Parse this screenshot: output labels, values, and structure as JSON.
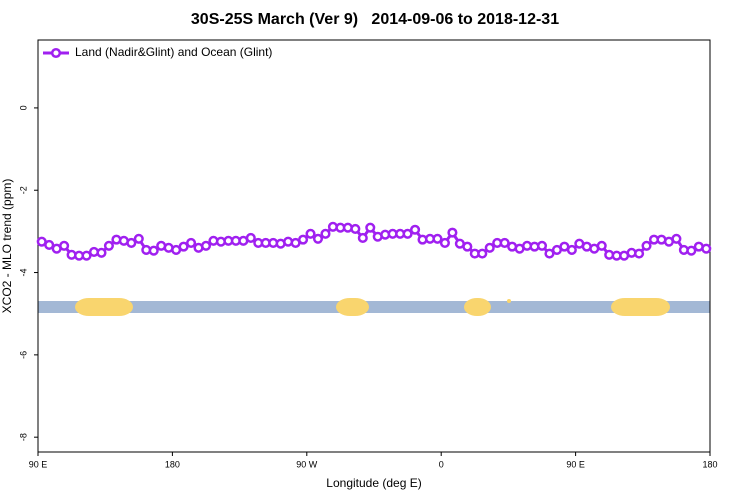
{
  "chart_data": {
    "type": "line",
    "title": "30S-25S March (Ver 9)   2014-09-06 to 2018-12-31",
    "x_label": "Longitude (deg E)",
    "y_label": "XCO2 - MLO trend (ppm)",
    "xlim": [
      90,
      540
    ],
    "ylim": [
      -8.36,
      1.65
    ],
    "xticks": [
      {
        "value": 90,
        "label": "90 E"
      },
      180,
      {
        "value": 270,
        "label": "90 W"
      },
      {
        "value": 360,
        "label": "0"
      },
      {
        "value": 450,
        "label": "90 E"
      },
      {
        "value": 540,
        "label": "180"
      }
    ],
    "yticks": [
      0,
      -2,
      -4,
      -6,
      -8
    ],
    "grid": false,
    "legend": "top-left",
    "x": [
      92.5,
      97.5,
      102.5,
      107.5,
      112.5,
      117.5,
      122.5,
      127.5,
      132.5,
      137.5,
      142.5,
      147.5,
      152.5,
      157.5,
      162.5,
      167.5,
      172.5,
      177.5,
      182.5,
      187.5,
      192.5,
      197.5,
      202.5,
      207.5,
      212.5,
      217.5,
      222.5,
      227.5,
      232.5,
      237.5,
      242.5,
      247.5,
      252.5,
      257.5,
      262.5,
      267.5,
      272.5,
      277.5,
      282.5,
      287.5,
      292.5,
      297.5,
      302.5,
      307.5,
      312.5,
      317.5,
      322.5,
      327.5,
      332.5,
      337.5,
      342.5,
      347.5,
      352.5,
      357.5,
      362.5,
      367.5,
      372.5,
      377.5,
      382.5,
      387.5,
      392.5,
      397.5,
      402.5,
      407.5,
      412.5,
      417.5,
      422.5,
      427.5,
      432.5,
      437.5,
      442.5,
      447.5,
      452.5,
      457.5,
      462.5,
      467.5,
      472.5,
      477.5,
      482.5,
      487.5,
      492.5,
      497.5,
      502.5,
      507.5,
      512.5,
      517.5,
      522.5,
      527.5,
      532.5,
      537.5
    ],
    "series": [
      {
        "name": "Land (Nadir&Glint) and Ocean (Glint)",
        "color": "#a020f0",
        "values": [
          -3.25,
          -3.33,
          -3.42,
          -3.35,
          -3.57,
          -3.59,
          -3.59,
          -3.5,
          -3.52,
          -3.35,
          -3.2,
          -3.23,
          -3.28,
          -3.18,
          -3.45,
          -3.47,
          -3.35,
          -3.4,
          -3.45,
          -3.37,
          -3.28,
          -3.4,
          -3.35,
          -3.23,
          -3.25,
          -3.23,
          -3.23,
          -3.23,
          -3.16,
          -3.28,
          -3.28,
          -3.28,
          -3.3,
          -3.25,
          -3.28,
          -3.2,
          -3.06,
          -3.18,
          -3.06,
          -2.89,
          -2.91,
          -2.91,
          -2.94,
          -3.16,
          -2.91,
          -3.13,
          -3.08,
          -3.06,
          -3.06,
          -3.06,
          -2.96,
          -3.2,
          -3.18,
          -3.18,
          -3.28,
          -3.03,
          -3.3,
          -3.37,
          -3.54,
          -3.54,
          -3.4,
          -3.28,
          -3.28,
          -3.37,
          -3.42,
          -3.35,
          -3.37,
          -3.35,
          -3.54,
          -3.45,
          -3.37,
          -3.45,
          -3.3,
          -3.37,
          -3.42,
          -3.35,
          -3.57,
          -3.59,
          -3.59,
          -3.52,
          -3.54,
          -3.35,
          -3.2,
          -3.2,
          -3.25,
          -3.18,
          -3.45,
          -3.47,
          -3.37,
          -3.42
        ]
      }
    ]
  }
}
